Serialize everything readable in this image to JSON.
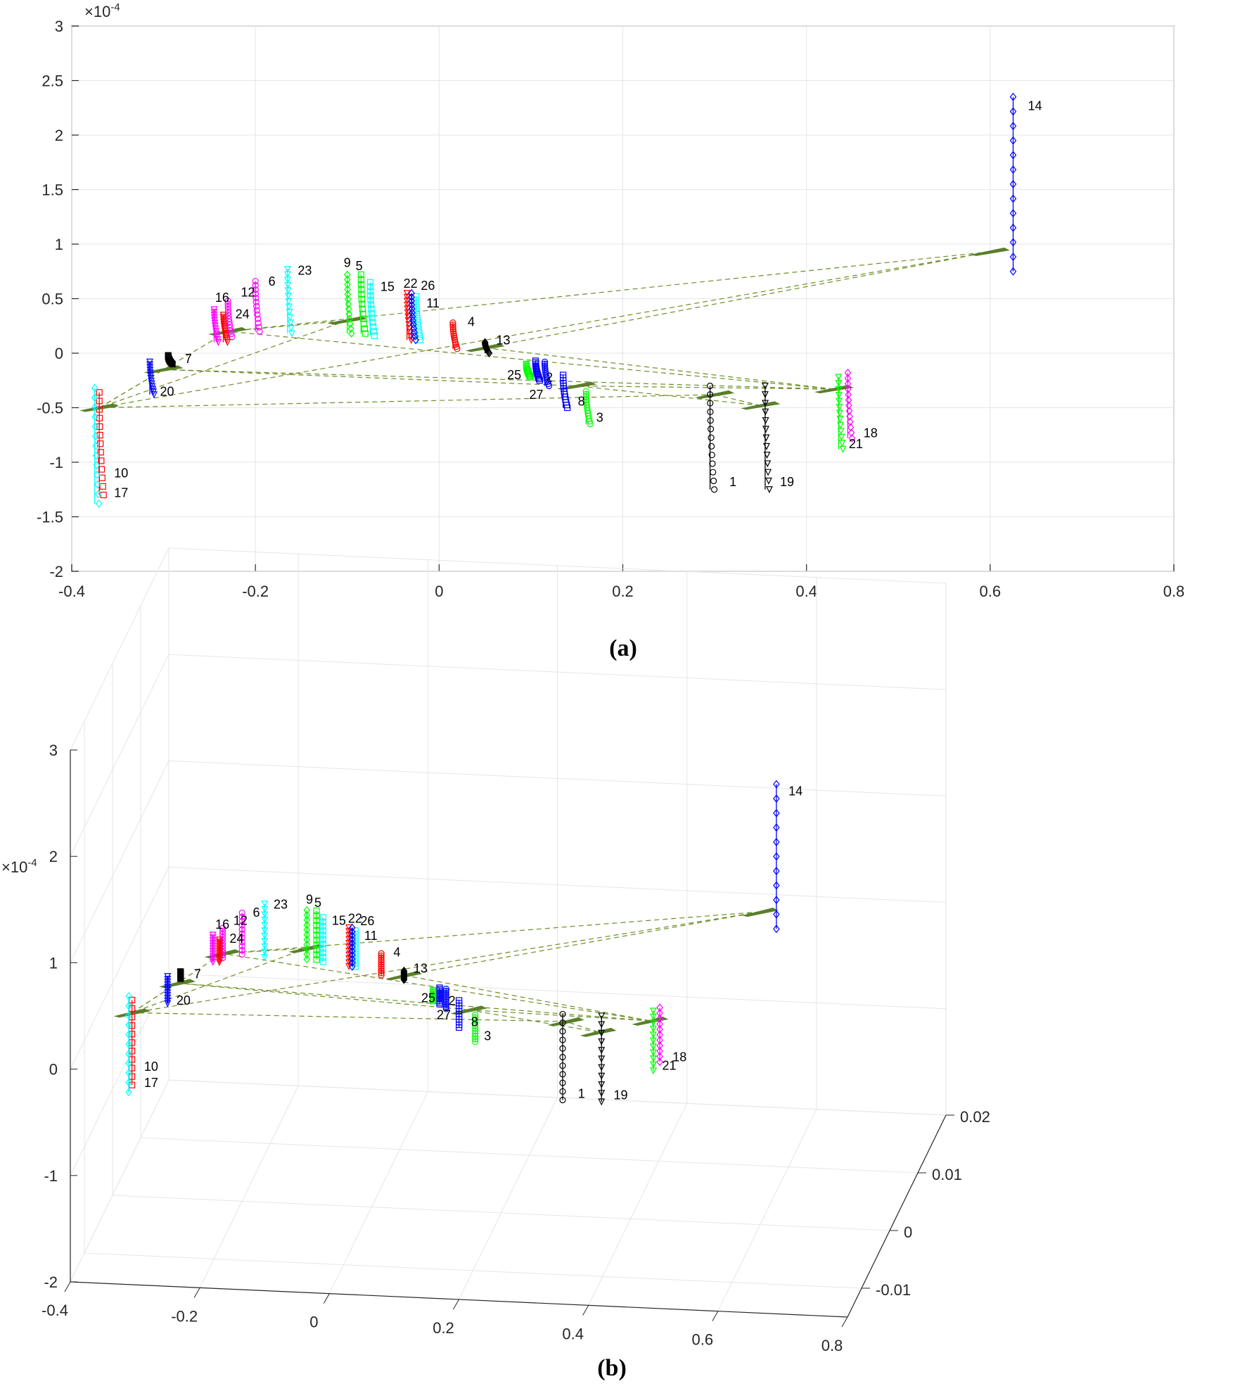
{
  "chart_data": [
    {
      "type": "line",
      "panel": "a",
      "caption": "(a)",
      "view": "2-D projection (x vs z)",
      "xlim": [
        -0.4,
        0.8
      ],
      "ylim": [
        -2,
        3
      ],
      "xticks": [
        "-0.4",
        "-0.2",
        "0",
        "0.2",
        "0.4",
        "0.6",
        "0.8"
      ],
      "yticks": [
        "-2",
        "-1.5",
        "-1",
        "-0.5",
        "0",
        "0.5",
        "1",
        "1.5",
        "2",
        "2.5",
        "3"
      ],
      "y_exponent": "×10",
      "y_exponent_power": "-4",
      "grid": true,
      "series": [
        {
          "name": "1",
          "color": "#000000",
          "marker": "circle",
          "x": 0.295,
          "z_top": -0.3,
          "z_bottom": -1.25
        },
        {
          "name": "2",
          "color": "#0000ff",
          "marker": "square",
          "x": 0.105,
          "z_top": -0.07,
          "z_bottom": -0.25
        },
        {
          "name": "3",
          "color": "#00ff00",
          "marker": "circle",
          "x": 0.16,
          "z_top": -0.35,
          "z_bottom": -0.65
        },
        {
          "name": "4",
          "color": "#ff0000",
          "marker": "circle",
          "x": 0.015,
          "z_top": 0.28,
          "z_bottom": 0.04
        },
        {
          "name": "5",
          "color": "#00ff00",
          "marker": "square",
          "x": -0.085,
          "z_top": 0.72,
          "z_bottom": 0.18
        },
        {
          "name": "6",
          "color": "#ff00ff",
          "marker": "circle",
          "x": -0.2,
          "z_top": 0.66,
          "z_bottom": 0.2
        },
        {
          "name": "7",
          "color": "#000000",
          "marker": "square",
          "x": -0.295,
          "z_top": -0.02,
          "z_bottom": -0.1
        },
        {
          "name": "8",
          "color": "#0000ff",
          "marker": "square",
          "x": 0.135,
          "z_top": -0.2,
          "z_bottom": -0.5
        },
        {
          "name": "9",
          "color": "#00ff00",
          "marker": "diamond",
          "x": -0.1,
          "z_top": 0.72,
          "z_bottom": 0.18
        },
        {
          "name": "10",
          "color": "#ff0000",
          "marker": "square",
          "x": -0.37,
          "z_top": -0.36,
          "z_bottom": -1.3
        },
        {
          "name": "11",
          "color": "#00ffff",
          "marker": "square",
          "x": -0.025,
          "z_top": 0.52,
          "z_bottom": 0.12
        },
        {
          "name": "12",
          "color": "#ff00ff",
          "marker": "circle",
          "x": -0.23,
          "z_top": 0.48,
          "z_bottom": 0.15
        },
        {
          "name": "13",
          "color": "#000000",
          "marker": "diamond",
          "x": 0.05,
          "z_top": 0.1,
          "z_bottom": 0.0
        },
        {
          "name": "14",
          "color": "#0000ff",
          "marker": "diamond",
          "x": 0.625,
          "z_top": 2.35,
          "z_bottom": 0.75
        },
        {
          "name": "15",
          "color": "#00ffff",
          "marker": "square",
          "x": -0.075,
          "z_top": 0.65,
          "z_bottom": 0.16
        },
        {
          "name": "16",
          "color": "#ff00ff",
          "marker": "triangle-down",
          "x": -0.245,
          "z_top": 0.4,
          "z_bottom": 0.1
        },
        {
          "name": "17",
          "color": "#00ffff",
          "marker": "diamond",
          "x": -0.375,
          "z_top": -0.32,
          "z_bottom": -1.38
        },
        {
          "name": "18",
          "color": "#ff00ff",
          "marker": "diamond",
          "x": 0.445,
          "z_top": -0.18,
          "z_bottom": -0.78
        },
        {
          "name": "19",
          "color": "#000000",
          "marker": "triangle-down",
          "x": 0.355,
          "z_top": -0.3,
          "z_bottom": -1.25
        },
        {
          "name": "20",
          "color": "#0000ff",
          "marker": "triangle-down",
          "x": -0.315,
          "z_top": -0.08,
          "z_bottom": -0.38
        },
        {
          "name": "21",
          "color": "#00ff00",
          "marker": "triangle-down",
          "x": 0.435,
          "z_top": -0.22,
          "z_bottom": -0.88
        },
        {
          "name": "22",
          "color": "#ff0000",
          "marker": "triangle-down",
          "x": -0.035,
          "z_top": 0.55,
          "z_bottom": 0.12
        },
        {
          "name": "23",
          "color": "#00ffff",
          "marker": "triangle-down",
          "x": -0.165,
          "z_top": 0.77,
          "z_bottom": 0.18
        },
        {
          "name": "24",
          "color": "#ff0000",
          "marker": "triangle-down",
          "x": -0.235,
          "z_top": 0.35,
          "z_bottom": 0.1
        },
        {
          "name": "25",
          "color": "#00ff00",
          "marker": "square",
          "x": 0.095,
          "z_top": -0.1,
          "z_bottom": -0.22
        },
        {
          "name": "26",
          "color": "#0000ff",
          "marker": "diamond",
          "x": -0.03,
          "z_top": 0.55,
          "z_bottom": 0.12
        },
        {
          "name": "27",
          "color": "#0000ff",
          "marker": "circle",
          "x": 0.115,
          "z_top": -0.08,
          "z_bottom": -0.3
        }
      ]
    },
    {
      "type": "line",
      "panel": "b",
      "caption": "(b)",
      "view": "3-D view (x, y, z)",
      "xlim": [
        -0.4,
        0.8
      ],
      "ylim": [
        -0.015,
        0.02
      ],
      "zlim": [
        -2,
        3
      ],
      "xticks": [
        "-0.4",
        "-0.2",
        "0",
        "0.2",
        "0.4",
        "0.6",
        "0.8"
      ],
      "yticks": [
        "-0.01",
        "0",
        "0.01",
        "0.02"
      ],
      "zticks": [
        "-2",
        "-1",
        "0",
        "1",
        "2",
        "3"
      ],
      "z_exponent": "×10",
      "z_exponent_power": "-4",
      "grid": true
    }
  ],
  "labels_a": [
    {
      "text": "1",
      "x": 0.31,
      "z": -1.22
    },
    {
      "text": "2",
      "x": 0.11,
      "z": -0.26
    },
    {
      "text": "3",
      "x": 0.165,
      "z": -0.63
    },
    {
      "text": "4",
      "x": 0.025,
      "z": 0.25
    },
    {
      "text": "5",
      "x": -0.097,
      "z": 0.76
    },
    {
      "text": "6",
      "x": -0.192,
      "z": 0.62
    },
    {
      "text": "7",
      "x": -0.283,
      "z": -0.09
    },
    {
      "text": "8",
      "x": 0.145,
      "z": -0.48
    },
    {
      "text": "9",
      "x": -0.11,
      "z": 0.79
    },
    {
      "text": "10",
      "x": -0.36,
      "z": -1.14
    },
    {
      "text": "11",
      "x": -0.02,
      "z": 0.42
    },
    {
      "text": "12",
      "x": -0.222,
      "z": 0.52
    },
    {
      "text": "13",
      "x": 0.056,
      "z": 0.08
    },
    {
      "text": "14",
      "x": 0.635,
      "z": 2.23
    },
    {
      "text": "15",
      "x": -0.07,
      "z": 0.57
    },
    {
      "text": "16",
      "x": -0.25,
      "z": 0.47
    },
    {
      "text": "17",
      "x": -0.36,
      "z": -1.32
    },
    {
      "text": "18",
      "x": 0.456,
      "z": -0.77
    },
    {
      "text": "19",
      "x": 0.365,
      "z": -1.22
    },
    {
      "text": "20",
      "x": -0.31,
      "z": -0.39
    },
    {
      "text": "21",
      "x": 0.44,
      "z": -0.87
    },
    {
      "text": "22",
      "x": -0.045,
      "z": 0.6
    },
    {
      "text": "23",
      "x": -0.16,
      "z": 0.72
    },
    {
      "text": "24",
      "x": -0.228,
      "z": 0.32
    },
    {
      "text": "25",
      "x": 0.068,
      "z": -0.24
    },
    {
      "text": "26",
      "x": -0.026,
      "z": 0.58
    },
    {
      "text": "27",
      "x": 0.092,
      "z": -0.42
    }
  ],
  "labels_b": [
    "1",
    "2",
    "3",
    "4",
    "5",
    "6",
    "7",
    "8",
    "9",
    "10",
    "11",
    "12",
    "13",
    "14",
    "15",
    "16",
    "17",
    "18",
    "19",
    "20",
    "21",
    "22",
    "23",
    "24",
    "25",
    "26",
    "27"
  ]
}
